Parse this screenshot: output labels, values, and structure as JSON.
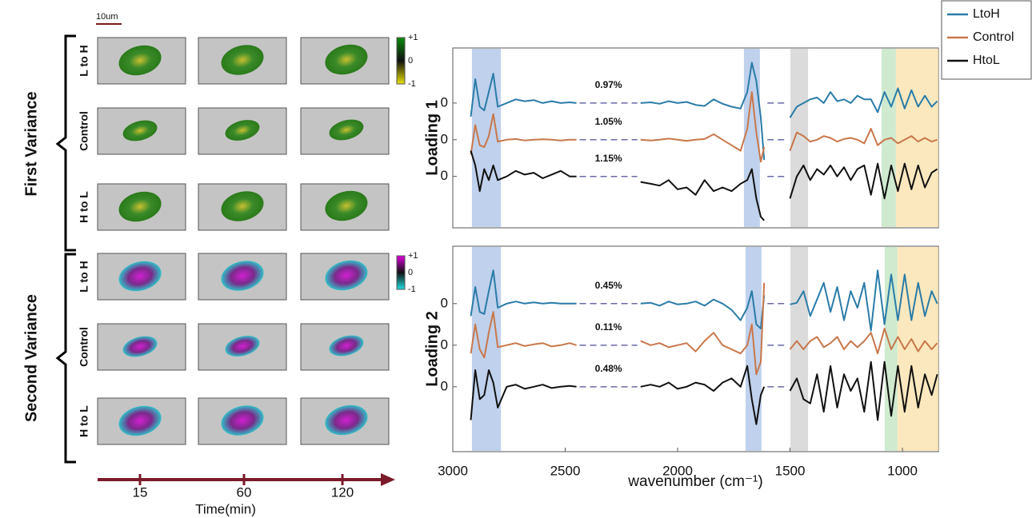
{
  "image_grid": {
    "scale_bar": "10um",
    "groups": [
      {
        "label": "First Variance",
        "rows": [
          "L to H",
          "Control",
          "H to L"
        ],
        "colorbar": [
          "+1",
          "0",
          "-1"
        ]
      },
      {
        "label": "Second Variance",
        "rows": [
          "L to H",
          "Control",
          "H to L"
        ],
        "colorbar": [
          "+1",
          "0",
          "-1"
        ]
      }
    ],
    "time_axis": {
      "label": "Time(min)",
      "ticks": [
        15,
        60,
        120
      ]
    }
  },
  "chart_data": [
    {
      "type": "line",
      "ylabel": "Loading 1",
      "legend": "upper right",
      "x": [
        2920,
        2900,
        2880,
        2860,
        2840,
        2820,
        2800,
        2760,
        2720,
        2680,
        2640,
        2600,
        2560,
        2520,
        2480,
        2450,
        2300,
        2165,
        2120,
        2080,
        2040,
        2000,
        1960,
        1920,
        1880,
        1840,
        1800,
        1760,
        1720,
        1690,
        1670,
        1650,
        1630,
        1615,
        1560,
        1500,
        1470,
        1440,
        1410,
        1380,
        1350,
        1320,
        1290,
        1260,
        1230,
        1200,
        1170,
        1140,
        1110,
        1080,
        1050,
        1020,
        990,
        960,
        930,
        900,
        870,
        845
      ],
      "xlim": [
        3000,
        840
      ],
      "ylim": [
        -1.4,
        3.5
      ],
      "yticks": [
        0,
        {
          "value": 1,
          "label": "0"
        },
        {
          "value": 2,
          "label": "0"
        }
      ],
      "bands": [
        {
          "from": 2915,
          "to": 2786,
          "color": "#a9c1e6"
        },
        {
          "from": 1705,
          "to": 1634,
          "color": "#a9c1e6"
        },
        {
          "from": 1498,
          "to": 1420,
          "color": "#cfcfcf"
        },
        {
          "from": 1093,
          "to": 1029,
          "color": "#bfe3bf"
        },
        {
          "from": 1029,
          "to": 840,
          "color": "#fbe0a8"
        }
      ],
      "series": [
        {
          "name": "LtoH",
          "color": "#2a7ca8",
          "annotation": "0.97%",
          "values": [
            1.63,
            2.65,
            1.9,
            1.8,
            2.3,
            2.8,
            1.9,
            2.0,
            2.1,
            2.05,
            2.08,
            2.0,
            2.05,
            2.0,
            2.02,
            2.0,
            null,
            2.0,
            2.02,
            1.98,
            2.05,
            2.0,
            2.03,
            1.95,
            1.92,
            2.1,
            1.98,
            1.9,
            1.85,
            2.3,
            3.1,
            2.6,
            1.6,
            0.45,
            null,
            1.6,
            1.9,
            2.0,
            2.1,
            2.15,
            2.0,
            2.3,
            2.05,
            2.1,
            2.0,
            2.2,
            2.1,
            2.1,
            1.75,
            2.3,
            1.9,
            2.4,
            1.85,
            2.35,
            1.9,
            2.2,
            1.9,
            2.05
          ]
        },
        {
          "name": "Control",
          "color": "#c9774a",
          "annotation": "1.05%",
          "values": [
            0.6,
            1.4,
            0.85,
            0.8,
            1.1,
            1.7,
            0.95,
            1.0,
            1.02,
            0.98,
            1.0,
            1.01,
            1.0,
            0.98,
            1.0,
            1.0,
            null,
            1.0,
            0.98,
            1.0,
            1.03,
            1.0,
            0.97,
            1.0,
            1.02,
            1.15,
            1.0,
            0.85,
            0.7,
            1.3,
            2.3,
            1.2,
            0.4,
            0.8,
            null,
            0.7,
            1.2,
            1.1,
            0.95,
            1.0,
            1.1,
            1.05,
            0.95,
            1.02,
            1.05,
            1.0,
            0.9,
            1.3,
            0.85,
            1.0,
            1.05,
            0.9,
            1.0,
            1.1,
            0.95,
            1.05,
            0.95,
            1.0
          ]
        },
        {
          "name": "HtoL",
          "color": "#111111",
          "annotation": "1.15%",
          "values": [
            0.7,
            0.3,
            -0.4,
            0.2,
            -0.1,
            0.3,
            -0.1,
            0.0,
            0.15,
            0.05,
            0.1,
            -0.05,
            0.05,
            0.15,
            0.0,
            0.0,
            null,
            -0.15,
            -0.2,
            -0.25,
            -0.1,
            -0.35,
            -0.3,
            -0.5,
            -0.1,
            -0.4,
            -0.3,
            -0.4,
            -0.2,
            -0.1,
            0.2,
            -0.6,
            -1.1,
            -1.2,
            null,
            -0.6,
            0.0,
            0.3,
            -0.1,
            0.2,
            0.05,
            0.3,
            0.0,
            0.25,
            -0.1,
            0.2,
            0.3,
            -0.5,
            0.35,
            -0.6,
            0.3,
            -0.4,
            0.35,
            -0.35,
            0.3,
            -0.3,
            0.1,
            0.2
          ]
        }
      ]
    },
    {
      "type": "line",
      "ylabel": "Loading 2",
      "xlabel": "wavenumber (cm⁻¹)",
      "x": [
        2920,
        2900,
        2880,
        2860,
        2840,
        2820,
        2800,
        2760,
        2720,
        2680,
        2640,
        2600,
        2560,
        2520,
        2480,
        2450,
        2300,
        2165,
        2120,
        2080,
        2040,
        2000,
        1960,
        1920,
        1880,
        1840,
        1800,
        1760,
        1720,
        1690,
        1670,
        1650,
        1630,
        1615,
        1560,
        1500,
        1470,
        1440,
        1410,
        1380,
        1350,
        1320,
        1290,
        1260,
        1230,
        1200,
        1170,
        1140,
        1110,
        1080,
        1050,
        1020,
        990,
        960,
        930,
        900,
        870,
        845
      ],
      "xlim": [
        3000,
        840
      ],
      "xticks": [
        3000,
        2500,
        2000,
        1500,
        1000
      ],
      "ylim": [
        -1.56,
        3.38
      ],
      "yticks": [
        0,
        {
          "value": 1,
          "label": "0"
        },
        {
          "value": 2,
          "label": "0"
        }
      ],
      "bands": [
        {
          "from": 2915,
          "to": 2786,
          "color": "#a9c1e6"
        },
        {
          "from": 1698,
          "to": 1627,
          "color": "#a9c1e6"
        },
        {
          "from": 1498,
          "to": 1420,
          "color": "#cfcfcf"
        },
        {
          "from": 1079,
          "to": 1022,
          "color": "#bfe3bf"
        },
        {
          "from": 1022,
          "to": 840,
          "color": "#fbe0a8"
        }
      ],
      "series": [
        {
          "name": "LtoH",
          "color": "#2a7ca8",
          "annotation": "0.45%",
          "values": [
            1.7,
            2.4,
            1.8,
            1.75,
            2.3,
            2.8,
            1.9,
            2.0,
            2.05,
            2.0,
            2.03,
            2.0,
            2.02,
            2.0,
            2.0,
            2.0,
            null,
            2.0,
            2.02,
            1.95,
            2.05,
            1.98,
            2.0,
            2.05,
            1.95,
            2.1,
            2.0,
            1.85,
            1.6,
            1.9,
            2.3,
            1.5,
            1.4,
            2.2,
            null,
            1.98,
            2.02,
            2.3,
            1.7,
            2.1,
            2.5,
            1.8,
            2.4,
            1.6,
            2.3,
            1.9,
            2.5,
            1.35,
            2.8,
            1.5,
            2.7,
            1.6,
            2.7,
            1.6,
            2.5,
            1.7,
            2.3,
            2.0
          ]
        },
        {
          "name": "Control",
          "color": "#c9774a",
          "annotation": "0.11%",
          "values": [
            0.8,
            1.5,
            0.9,
            0.7,
            1.3,
            1.8,
            0.95,
            1.0,
            1.05,
            0.98,
            1.02,
            1.05,
            0.97,
            1.0,
            1.05,
            1.0,
            null,
            1.1,
            1.0,
            1.05,
            0.95,
            1.0,
            1.05,
            0.85,
            1.1,
            1.3,
            1.0,
            0.9,
            0.8,
            1.0,
            1.5,
            0.3,
            0.6,
            2.5,
            null,
            0.9,
            1.1,
            0.9,
            1.1,
            1.2,
            0.95,
            1.05,
            1.2,
            0.9,
            1.1,
            0.95,
            1.1,
            1.3,
            0.8,
            1.4,
            0.9,
            1.2,
            0.9,
            1.15,
            0.85,
            1.1,
            0.9,
            1.05
          ]
        },
        {
          "name": "HtoL",
          "color": "#111111",
          "annotation": "0.48%",
          "values": [
            -0.8,
            0.4,
            -0.3,
            -0.2,
            0.4,
            0.1,
            -0.5,
            0.0,
            0.05,
            -0.05,
            0.0,
            0.05,
            -0.03,
            0.0,
            0.02,
            0.0,
            null,
            0.0,
            0.05,
            0.0,
            0.1,
            -0.05,
            0.0,
            0.1,
            0.05,
            -0.1,
            0.1,
            0.2,
            0.0,
            0.5,
            -0.3,
            -0.9,
            -0.2,
            0.0,
            null,
            -0.1,
            0.2,
            -0.3,
            -0.4,
            0.3,
            -0.6,
            0.5,
            -0.5,
            0.3,
            -0.1,
            0.2,
            -0.6,
            0.6,
            -0.8,
            0.6,
            -0.7,
            0.5,
            -0.6,
            0.5,
            -0.5,
            0.3,
            -0.2,
            0.3
          ]
        }
      ]
    }
  ]
}
